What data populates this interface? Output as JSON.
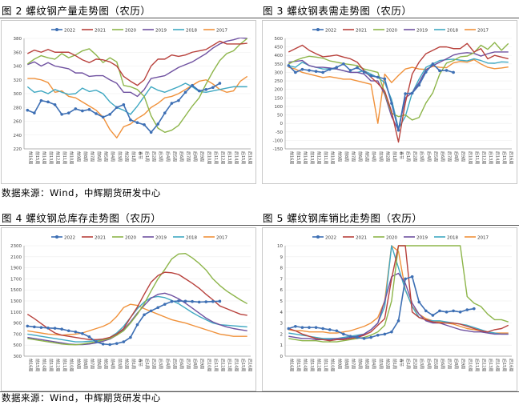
{
  "figures": {
    "fig2": {
      "caption": "图 2  螺纹钢产量走势图（农历）"
    },
    "fig3": {
      "caption": "图 3  螺纹钢表需走势图（农历）"
    },
    "fig4": {
      "caption": "图 4  螺纹钢总库存走势图（农历）"
    },
    "fig5": {
      "caption": "图 5  螺纹钢库销比走势图（农历）"
    }
  },
  "source_top": "数据来源：Wind，中辉期货研发中心",
  "source_bottom": "数据来源：Wind，中辉期货研发中心",
  "x_ticks": [
    "前16周",
    "前15周",
    "前14周",
    "前13周",
    "前12周",
    "前11周",
    "前10周",
    "前9周",
    "前8周",
    "前7周",
    "前6周",
    "前5周",
    "前4周",
    "前3周",
    "前2周",
    "前1周",
    "春节",
    "后1周",
    "后2周",
    "后3周",
    "后4周",
    "后5周",
    "后6周",
    "后7周",
    "后8周",
    "后9周",
    "后10周",
    "后11周",
    "后12周",
    "后13周",
    "后14周",
    "后15周",
    "后16周"
  ],
  "legend_names": [
    "2022",
    "2021",
    "2020",
    "2019",
    "2018",
    "2017"
  ],
  "colors": {
    "2022": "#3d6fb4",
    "2021": "#b8413c",
    "2020": "#8db54a",
    "2019": "#6f51a0",
    "2018": "#3fa8c2",
    "2017": "#f0913a"
  },
  "chart_data": [
    {
      "id": "fig2",
      "type": "line",
      "ylim": [
        220,
        380
      ],
      "yticks": [
        "220",
        "240",
        "260",
        "280",
        "300",
        "320",
        "340",
        "360",
        "380"
      ],
      "series": [
        {
          "name": "2022",
          "values": [
            276,
            272,
            290,
            288,
            284,
            270,
            272,
            278,
            275,
            277,
            271,
            266,
            270,
            280,
            284,
            262,
            258,
            255,
            244,
            256,
            272,
            286,
            290,
            302,
            312,
            304,
            306,
            309,
            315,
            null,
            null,
            null,
            null
          ]
        },
        {
          "name": "2021",
          "values": [
            358,
            363,
            360,
            364,
            360,
            360,
            360,
            355,
            349,
            345,
            350,
            349,
            346,
            340,
            325,
            318,
            312,
            320,
            340,
            350,
            350,
            356,
            354,
            356,
            360,
            362,
            364,
            370,
            376,
            372,
            372,
            372,
            373
          ]
        },
        {
          "name": "2020",
          "values": [
            343,
            350,
            355,
            352,
            350,
            358,
            352,
            356,
            362,
            365,
            356,
            345,
            352,
            346,
            312,
            310,
            306,
            296,
            268,
            250,
            244,
            247,
            254,
            268,
            282,
            294,
            314,
            332,
            348,
            358,
            362,
            372,
            380
          ]
        },
        {
          "name": "2019",
          "values": [
            342,
            346,
            340,
            345,
            340,
            338,
            336,
            330,
            330,
            325,
            326,
            326,
            320,
            315,
            302,
            302,
            296,
            306,
            322,
            324,
            326,
            332,
            338,
            342,
            346,
            352,
            358,
            366,
            372,
            376,
            378,
            381,
            380
          ]
        },
        {
          "name": "2018",
          "values": [
            310,
            302,
            304,
            300,
            306,
            302,
            299,
            300,
            308,
            303,
            305,
            300,
            288,
            280,
            276,
            270,
            282,
            296,
            310,
            305,
            302,
            306,
            310,
            315,
            310,
            303,
            302,
            304,
            306,
            308,
            310,
            310,
            310
          ]
        },
        {
          "name": "2017",
          "values": [
            322,
            322,
            320,
            316,
            302,
            304,
            296,
            294,
            288,
            282,
            276,
            266,
            248,
            236,
            252,
            256,
            264,
            270,
            280,
            286,
            294,
            296,
            300,
            306,
            312,
            318,
            320,
            314,
            306,
            302,
            304,
            318,
            325
          ]
        }
      ]
    },
    {
      "id": "fig3",
      "type": "line",
      "ylim": [
        -150,
        500
      ],
      "yticks": [
        "-150",
        "-100",
        "-50",
        "0",
        "50",
        "100",
        "150",
        "200",
        "250",
        "300",
        "350",
        "400",
        "450",
        "500"
      ],
      "series": [
        {
          "name": "2022",
          "values": [
            340,
            300,
            318,
            312,
            306,
            300,
            318,
            330,
            350,
            312,
            328,
            302,
            280,
            272,
            262,
            118,
            -40,
            175,
            178,
            225,
            302,
            350,
            310,
            312,
            300,
            null,
            null,
            null,
            null,
            null,
            null,
            null,
            null
          ]
        },
        {
          "name": "2021",
          "values": [
            420,
            440,
            460,
            430,
            410,
            392,
            396,
            402,
            390,
            380,
            360,
            310,
            272,
            235,
            190,
            70,
            -110,
            120,
            290,
            360,
            410,
            430,
            450,
            450,
            440,
            440,
            470,
            420,
            440,
            380,
            400,
            390,
            380
          ]
        },
        {
          "name": "2020",
          "values": [
            350,
            370,
            385,
            395,
            390,
            384,
            368,
            360,
            352,
            346,
            340,
            320,
            310,
            300,
            180,
            60,
            40,
            50,
            20,
            35,
            120,
            180,
            290,
            355,
            370,
            392,
            396,
            416,
            460,
            436,
            476,
            430,
            470
          ]
        },
        {
          "name": "2019",
          "values": [
            360,
            365,
            370,
            340,
            330,
            330,
            326,
            320,
            310,
            300,
            300,
            290,
            250,
            250,
            170,
            40,
            -40,
            150,
            180,
            240,
            315,
            340,
            360,
            380,
            402,
            412,
            416,
            412,
            396,
            410,
            420,
            420,
            420
          ]
        },
        {
          "name": "2018",
          "values": [
            340,
            330,
            360,
            340,
            330,
            320,
            320,
            320,
            310,
            300,
            300,
            310,
            290,
            270,
            240,
            140,
            -30,
            40,
            180,
            260,
            330,
            350,
            370,
            375,
            378,
            372,
            368,
            380,
            370,
            355,
            354,
            362,
            360
          ]
        },
        {
          "name": "2017",
          "values": [
            330,
            320,
            300,
            290,
            280,
            270,
            275,
            268,
            260,
            260,
            250,
            240,
            230,
            0,
            290,
            240,
            282,
            320,
            330,
            320,
            318,
            336,
            330,
            328,
            356,
            364,
            360,
            375,
            350,
            330,
            322,
            326,
            332
          ]
        }
      ]
    },
    {
      "id": "fig4",
      "type": "line",
      "ylim": [
        300,
        2300
      ],
      "yticks": [
        "300",
        "500",
        "700",
        "900",
        "1100",
        "1300",
        "1500",
        "1700",
        "1900",
        "2100",
        "2300"
      ],
      "series": [
        {
          "name": "2022",
          "values": [
            845,
            830,
            820,
            810,
            805,
            790,
            760,
            740,
            710,
            650,
            560,
            520,
            510,
            530,
            560,
            640,
            870,
            1050,
            1120,
            1180,
            1240,
            1290,
            1300,
            1295,
            1290,
            1280,
            1285,
            1290,
            1295,
            null,
            null,
            null,
            null
          ]
        },
        {
          "name": "2021",
          "values": [
            1060,
            980,
            890,
            800,
            720,
            680,
            660,
            640,
            620,
            600,
            600,
            610,
            640,
            700,
            800,
            1000,
            1190,
            1420,
            1640,
            1760,
            1820,
            1810,
            1780,
            1700,
            1620,
            1530,
            1420,
            1320,
            1210,
            1160,
            1110,
            1060,
            1040
          ]
        },
        {
          "name": "2020",
          "values": [
            620,
            600,
            580,
            560,
            540,
            520,
            510,
            505,
            520,
            540,
            560,
            590,
            620,
            680,
            760,
            900,
            1060,
            1250,
            1480,
            1700,
            1870,
            2060,
            2150,
            2160,
            2080,
            1980,
            1860,
            1700,
            1580,
            1480,
            1400,
            1320,
            1250
          ]
        },
        {
          "name": "2019",
          "values": [
            640,
            620,
            600,
            580,
            560,
            540,
            520,
            510,
            510,
            520,
            540,
            570,
            610,
            680,
            780,
            920,
            1080,
            1220,
            1350,
            1420,
            1440,
            1400,
            1340,
            1260,
            1170,
            1080,
            990,
            920,
            870,
            830,
            800,
            780,
            760
          ]
        },
        {
          "name": "2018",
          "values": [
            700,
            680,
            660,
            640,
            620,
            600,
            580,
            560,
            560,
            570,
            580,
            600,
            640,
            720,
            840,
            1000,
            1160,
            1280,
            1360,
            1380,
            1360,
            1310,
            1250,
            1170,
            1090,
            1020,
            960,
            900,
            870,
            860,
            850,
            840,
            830
          ]
        },
        {
          "name": "2017",
          "values": [
            760,
            740,
            720,
            700,
            690,
            680,
            690,
            700,
            720,
            760,
            800,
            840,
            900,
            1020,
            1180,
            1240,
            1220,
            1160,
            1110,
            1060,
            1010,
            960,
            930,
            900,
            860,
            820,
            780,
            740,
            700,
            680,
            660,
            660,
            660
          ]
        }
      ]
    },
    {
      "id": "fig5",
      "type": "line",
      "ylim": [
        0,
        10
      ],
      "yticks": [
        "0",
        "1",
        "2",
        "3",
        "4",
        "5",
        "6",
        "7",
        "8",
        "9",
        "10"
      ],
      "series": [
        {
          "name": "2022",
          "values": [
            2.5,
            2.7,
            2.6,
            2.6,
            2.6,
            2.5,
            2.4,
            2.3,
            2.0,
            1.8,
            1.7,
            1.6,
            1.7,
            1.9,
            2.0,
            2.2,
            3.2,
            7.0,
            7.2,
            4.9,
            4.1,
            3.7,
            4.1,
            4.0,
            4.1,
            4.0,
            4.2,
            4.3,
            null,
            null,
            null,
            null,
            null
          ]
        },
        {
          "name": "2021",
          "values": [
            2.5,
            2.3,
            2.0,
            1.8,
            1.6,
            1.5,
            1.4,
            1.5,
            1.5,
            1.6,
            1.7,
            1.9,
            2.2,
            2.8,
            3.4,
            7.0,
            10.0,
            10.0,
            4.0,
            3.5,
            3.3,
            3.1,
            3.0,
            3.0,
            3.0,
            2.9,
            2.7,
            2.5,
            2.3,
            2.2,
            2.4,
            2.5,
            2.8
          ]
        },
        {
          "name": "2020",
          "values": [
            1.6,
            1.5,
            1.4,
            1.4,
            1.4,
            1.3,
            1.3,
            1.3,
            1.4,
            1.5,
            1.6,
            1.7,
            1.9,
            2.2,
            2.8,
            5.0,
            10.0,
            10.0,
            10.0,
            10.0,
            10.0,
            10.0,
            10.0,
            10.0,
            10.0,
            10.0,
            5.4,
            4.8,
            4.5,
            3.8,
            3.3,
            3.3,
            3.1
          ]
        },
        {
          "name": "2019",
          "values": [
            1.8,
            1.7,
            1.6,
            1.6,
            1.5,
            1.5,
            1.5,
            1.6,
            1.6,
            1.7,
            1.8,
            2.0,
            2.4,
            3.0,
            5.0,
            7.2,
            7.5,
            6.6,
            4.8,
            3.8,
            3.2,
            3.0,
            3.0,
            2.8,
            2.6,
            2.4,
            2.3,
            2.2,
            2.2,
            2.1,
            2.0,
            2.0,
            2.0
          ]
        },
        {
          "name": "2018",
          "values": [
            2.1,
            2.0,
            1.9,
            1.8,
            1.7,
            1.6,
            1.6,
            1.6,
            1.7,
            1.8,
            1.9,
            2.0,
            2.4,
            3.0,
            4.5,
            10.0,
            8.0,
            6.0,
            4.5,
            3.5,
            3.3,
            3.2,
            3.2,
            3.1,
            3.0,
            2.9,
            2.8,
            2.6,
            2.4,
            2.2,
            2.1,
            2.0,
            2.0
          ]
        },
        {
          "name": "2017",
          "values": [
            2.4,
            2.3,
            2.3,
            2.2,
            2.2,
            2.2,
            2.1,
            2.1,
            2.2,
            2.3,
            2.5,
            2.7,
            3.0,
            3.5,
            5.0,
            10.0,
            9.5,
            6.0,
            4.5,
            3.8,
            3.4,
            3.2,
            3.1,
            3.0,
            2.9,
            2.7,
            2.5,
            2.4,
            2.3,
            2.2,
            2.1,
            2.1,
            2.1
          ]
        }
      ]
    }
  ]
}
